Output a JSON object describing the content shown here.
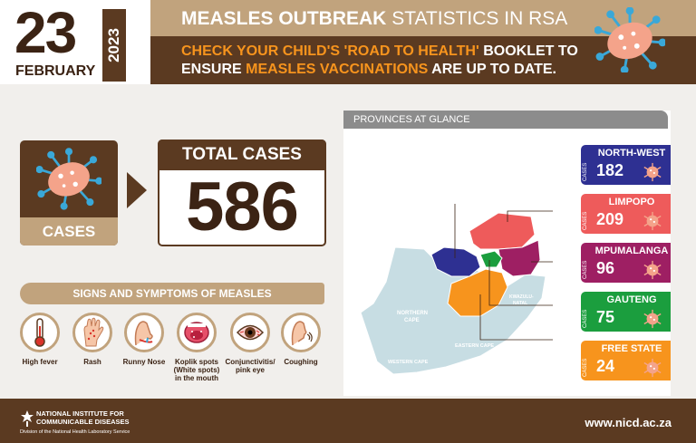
{
  "header": {
    "day": "23",
    "month": "FEBRUARY",
    "year": "2023",
    "title_bold": "MEASLES OUTBREAK",
    "title_rest": " STATISTICS IN RSA",
    "line1_part1": "CHECK YOUR CHILD'S 'ROAD TO HEALTH'",
    "line1_part2": " BOOKLET TO",
    "line2_part1": "ENSURE ",
    "line2_part2": "MEASLES VACCINATIONS",
    "line2_part3": " ARE UP TO DATE."
  },
  "cases": {
    "label": "CASES"
  },
  "total": {
    "title": "TOTAL CASES",
    "value": "586"
  },
  "symptoms": {
    "title": "SIGNS AND SYMPTOMS OF MEASLES",
    "items": [
      {
        "label": "High fever",
        "icon": "thermometer-icon"
      },
      {
        "label": "Rash",
        "icon": "hand-rash-icon"
      },
      {
        "label": "Runny Nose",
        "icon": "nose-icon"
      },
      {
        "label": "Koplik spots (White spots) in the mouth",
        "icon": "mouth-icon"
      },
      {
        "label": "Conjunctivitis/ pink eye",
        "icon": "eye-icon"
      },
      {
        "label": "Coughing",
        "icon": "cough-icon"
      }
    ]
  },
  "provinces": {
    "title": "PROVINCES AT GLANCE",
    "map_labels": {
      "northern_cape": "NORTHERN CAPE",
      "western_cape": "WESTERN CAPE",
      "eastern_cape": "EASTERN CAPE",
      "kzn": "KWAZULU- NATAL"
    },
    "cases_tag": "CASES",
    "items": [
      {
        "name": "NORTH-WEST",
        "count": "182",
        "color": "#2e3092"
      },
      {
        "name": "LIMPOPO",
        "count": "209",
        "color": "#ee5b5b"
      },
      {
        "name": "MPUMALANGA",
        "count": "96",
        "color": "#9e1f63"
      },
      {
        "name": "GAUTENG",
        "count": "75",
        "color": "#1b9e3e"
      },
      {
        "name": "FREE STATE",
        "count": "24",
        "color": "#f7941d"
      }
    ]
  },
  "footer": {
    "org_line1": "NATIONAL INSTITUTE FOR",
    "org_line2": "COMMUNICABLE DISEASES",
    "division": "Division of the National Health Laboratory Service",
    "website": "www.nicd.ac.za"
  }
}
